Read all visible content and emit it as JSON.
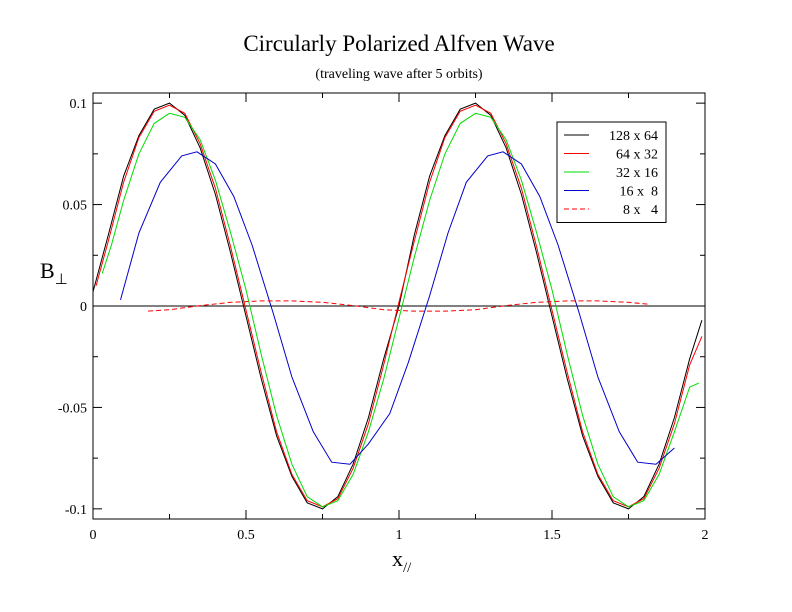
{
  "chart_data": {
    "type": "line",
    "title": "Circularly Polarized Alfven Wave",
    "subtitle": "(traveling wave after 5 orbits)",
    "xlabel_main": "x",
    "xlabel_sub": "//",
    "ylabel_main": "B",
    "ylabel_sub": "⊥",
    "xlim": [
      0,
      2
    ],
    "ylim": [
      -0.105,
      0.105
    ],
    "x_ticks": [
      0,
      0.5,
      1,
      1.5,
      2
    ],
    "x_tick_labels": [
      "0",
      "0.5",
      "1",
      "1.5",
      "2"
    ],
    "y_ticks": [
      -0.1,
      -0.05,
      0,
      0.05,
      0.1
    ],
    "y_tick_labels": [
      "-0.1",
      "-0.05",
      "0",
      "0.05",
      "0.1"
    ],
    "zero_line": true,
    "grid": false,
    "legend_position": "top-right",
    "series": [
      {
        "name": "128 x 64",
        "color": "#000000",
        "dash": "",
        "x": [
          0,
          0.05,
          0.1,
          0.15,
          0.2,
          0.25,
          0.3,
          0.35,
          0.4,
          0.45,
          0.5,
          0.55,
          0.6,
          0.65,
          0.7,
          0.75,
          0.8,
          0.85,
          0.9,
          0.95,
          1.0,
          1.05,
          1.1,
          1.15,
          1.2,
          1.25,
          1.3,
          1.35,
          1.4,
          1.45,
          1.5,
          1.55,
          1.6,
          1.65,
          1.7,
          1.75,
          1.8,
          1.85,
          1.9,
          1.95,
          1.99
        ],
        "y": [
          0.007,
          0.035,
          0.064,
          0.084,
          0.097,
          0.1,
          0.094,
          0.078,
          0.055,
          0.026,
          -0.005,
          -0.036,
          -0.064,
          -0.084,
          -0.097,
          -0.1,
          -0.094,
          -0.078,
          -0.055,
          -0.026,
          0.0,
          0.035,
          0.064,
          0.084,
          0.097,
          0.1,
          0.094,
          0.078,
          0.055,
          0.026,
          -0.005,
          -0.036,
          -0.064,
          -0.084,
          -0.097,
          -0.1,
          -0.094,
          -0.078,
          -0.055,
          -0.026,
          -0.007
        ]
      },
      {
        "name": "64 x 32",
        "color": "#ff0000",
        "dash": "",
        "x": [
          0.01,
          0.05,
          0.1,
          0.15,
          0.2,
          0.25,
          0.3,
          0.35,
          0.4,
          0.45,
          0.5,
          0.55,
          0.6,
          0.65,
          0.7,
          0.75,
          0.8,
          0.85,
          0.9,
          0.95,
          1.0,
          1.05,
          1.1,
          1.15,
          1.2,
          1.25,
          1.3,
          1.35,
          1.4,
          1.45,
          1.5,
          1.55,
          1.6,
          1.65,
          1.7,
          1.75,
          1.8,
          1.85,
          1.9,
          1.95,
          1.99
        ],
        "y": [
          0.01,
          0.032,
          0.061,
          0.083,
          0.096,
          0.099,
          0.095,
          0.08,
          0.058,
          0.029,
          -0.002,
          -0.033,
          -0.062,
          -0.083,
          -0.096,
          -0.099,
          -0.095,
          -0.08,
          -0.058,
          -0.029,
          0.002,
          0.032,
          0.061,
          0.083,
          0.096,
          0.099,
          0.095,
          0.08,
          0.058,
          0.029,
          -0.002,
          -0.033,
          -0.062,
          -0.083,
          -0.096,
          -0.099,
          -0.095,
          -0.08,
          -0.058,
          -0.029,
          -0.015
        ]
      },
      {
        "name": "32 x 16",
        "color": "#00dd00",
        "dash": "",
        "x": [
          0.03,
          0.06,
          0.1,
          0.15,
          0.2,
          0.25,
          0.3,
          0.35,
          0.4,
          0.45,
          0.5,
          0.55,
          0.6,
          0.65,
          0.7,
          0.75,
          0.8,
          0.85,
          0.9,
          0.95,
          1.0,
          1.05,
          1.1,
          1.15,
          1.2,
          1.25,
          1.3,
          1.35,
          1.4,
          1.45,
          1.5,
          1.55,
          1.6,
          1.65,
          1.7,
          1.75,
          1.8,
          1.85,
          1.9,
          1.95,
          1.98
        ],
        "y": [
          0.016,
          0.03,
          0.052,
          0.075,
          0.09,
          0.095,
          0.093,
          0.082,
          0.062,
          0.036,
          0.008,
          -0.024,
          -0.054,
          -0.078,
          -0.094,
          -0.099,
          -0.096,
          -0.083,
          -0.062,
          -0.036,
          -0.006,
          0.024,
          0.052,
          0.075,
          0.09,
          0.095,
          0.093,
          0.082,
          0.062,
          0.036,
          0.008,
          -0.024,
          -0.054,
          -0.078,
          -0.094,
          -0.099,
          -0.096,
          -0.083,
          -0.062,
          -0.04,
          -0.038
        ]
      },
      {
        "name": "16 x  8",
        "color": "#0000cc",
        "dash": "",
        "x": [
          0.09,
          0.15,
          0.22,
          0.29,
          0.34,
          0.4,
          0.46,
          0.52,
          0.59,
          0.65,
          0.72,
          0.78,
          0.84,
          0.9,
          0.97,
          1.03,
          1.1,
          1.16,
          1.22,
          1.29,
          1.34,
          1.4,
          1.46,
          1.52,
          1.59,
          1.65,
          1.72,
          1.78,
          1.84,
          1.9
        ],
        "y": [
          0.003,
          0.036,
          0.061,
          0.074,
          0.076,
          0.07,
          0.054,
          0.03,
          -0.004,
          -0.035,
          -0.062,
          -0.077,
          -0.078,
          -0.068,
          -0.053,
          -0.028,
          0.005,
          0.036,
          0.061,
          0.074,
          0.076,
          0.07,
          0.054,
          0.03,
          -0.004,
          -0.035,
          -0.062,
          -0.077,
          -0.078,
          -0.07
        ]
      },
      {
        "name": "8 x   4",
        "color": "#ff0000",
        "dash": "5,3",
        "x": [
          0.18,
          0.25,
          0.35,
          0.45,
          0.55,
          0.65,
          0.75,
          0.85,
          0.95,
          1.05,
          1.15,
          1.25,
          1.35,
          1.45,
          1.55,
          1.65,
          1.75,
          1.82
        ],
        "y": [
          -0.0025,
          -0.0018,
          0.0002,
          0.0018,
          0.0025,
          0.0025,
          0.0018,
          0.0002,
          -0.0018,
          -0.0025,
          -0.0025,
          -0.0018,
          0.0002,
          0.0018,
          0.0025,
          0.0025,
          0.0018,
          0.0008
        ]
      }
    ]
  }
}
